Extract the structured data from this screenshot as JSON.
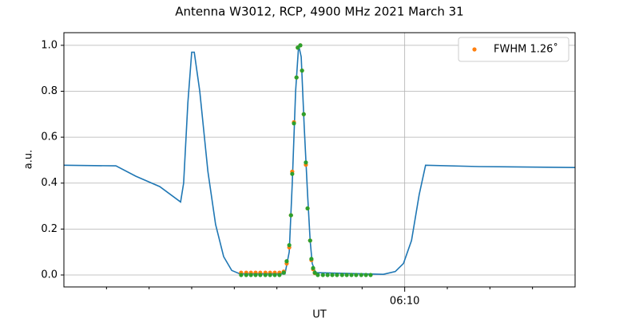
{
  "chart_data": {
    "type": "line",
    "title": "Antenna W3012, RCP, 4900 MHz 2021 March 31",
    "x_label": "UT",
    "y_label": "a.u.",
    "xlim": [
      2,
      14
    ],
    "xticks": [
      {
        "value": 10,
        "label": "06:10"
      }
    ],
    "xminorticks": [
      3,
      4,
      5,
      6,
      7,
      8,
      9,
      11,
      12,
      13
    ],
    "ylim": [
      -0.052,
      1.055
    ],
    "yticks": [
      {
        "value": 0,
        "label": "0.0"
      },
      {
        "value": 0.2,
        "label": "0.2"
      },
      {
        "value": 0.4,
        "label": "0.4"
      },
      {
        "value": 0.6,
        "label": "0.6"
      },
      {
        "value": 0.8,
        "label": "0.8"
      },
      {
        "value": 1,
        "label": "1.0"
      }
    ],
    "grid": true,
    "legend": "upper right",
    "series": [
      {
        "type": "line",
        "color": "#1f77b4",
        "x": [
          2.0,
          3.22,
          3.69,
          4.25,
          4.74,
          4.81,
          4.91,
          5.0,
          5.06,
          5.19,
          5.38,
          5.56,
          5.75,
          5.94,
          6.13,
          7.19,
          7.29,
          7.36,
          7.44,
          7.51,
          7.57,
          7.64,
          7.72,
          7.78,
          7.83,
          7.91,
          9.5,
          9.78,
          9.97,
          10.16,
          10.34,
          10.49,
          11.75,
          14.0
        ],
        "values": [
          0.478,
          0.475,
          0.43,
          0.385,
          0.318,
          0.4,
          0.75,
          0.97,
          0.97,
          0.8,
          0.45,
          0.22,
          0.08,
          0.02,
          0.005,
          0.005,
          0.1,
          0.4,
          0.8,
          1.0,
          0.95,
          0.65,
          0.35,
          0.15,
          0.05,
          0.01,
          0.003,
          0.015,
          0.05,
          0.15,
          0.35,
          0.478,
          0.472,
          0.468
        ]
      },
      {
        "type": "scatter",
        "name": "FWHM 1.26˚",
        "color": "#ff7f0e",
        "x": [
          6.16,
          6.28,
          6.39,
          6.5,
          6.61,
          6.73,
          6.84,
          6.95,
          7.06,
          7.16,
          7.23,
          7.29,
          7.33,
          7.36,
          7.4,
          7.46,
          7.49,
          7.55,
          7.59,
          7.63,
          7.68,
          7.72,
          7.78,
          7.81,
          7.85,
          7.89
        ],
        "values": [
          0.01,
          0.01,
          0.01,
          0.01,
          0.01,
          0.01,
          0.01,
          0.01,
          0.01,
          0.015,
          0.05,
          0.12,
          0.26,
          0.45,
          0.665,
          0.86,
          0.99,
          1.0,
          0.89,
          0.7,
          0.48,
          0.29,
          0.15,
          0.065,
          0.025,
          0.008
        ]
      },
      {
        "type": "scatter",
        "color": "#2ca02c",
        "x": [
          6.16,
          6.28,
          6.39,
          6.5,
          6.61,
          6.73,
          6.84,
          6.95,
          7.06,
          7.16,
          7.23,
          7.29,
          7.33,
          7.36,
          7.4,
          7.46,
          7.49,
          7.55,
          7.59,
          7.63,
          7.68,
          7.72,
          7.78,
          7.81,
          7.85,
          7.89,
          7.96,
          8.08,
          8.19,
          8.3,
          8.41,
          8.53,
          8.64,
          8.75,
          8.86,
          8.98,
          9.09,
          9.2
        ],
        "values": [
          0,
          0,
          0,
          0,
          0,
          0,
          0,
          0,
          0,
          0.01,
          0.06,
          0.13,
          0.26,
          0.44,
          0.66,
          0.86,
          0.99,
          1.0,
          0.89,
          0.7,
          0.49,
          0.29,
          0.15,
          0.07,
          0.03,
          0.01,
          0,
          0,
          0,
          0,
          0,
          0,
          0,
          0,
          0,
          0,
          0,
          0
        ]
      }
    ]
  }
}
